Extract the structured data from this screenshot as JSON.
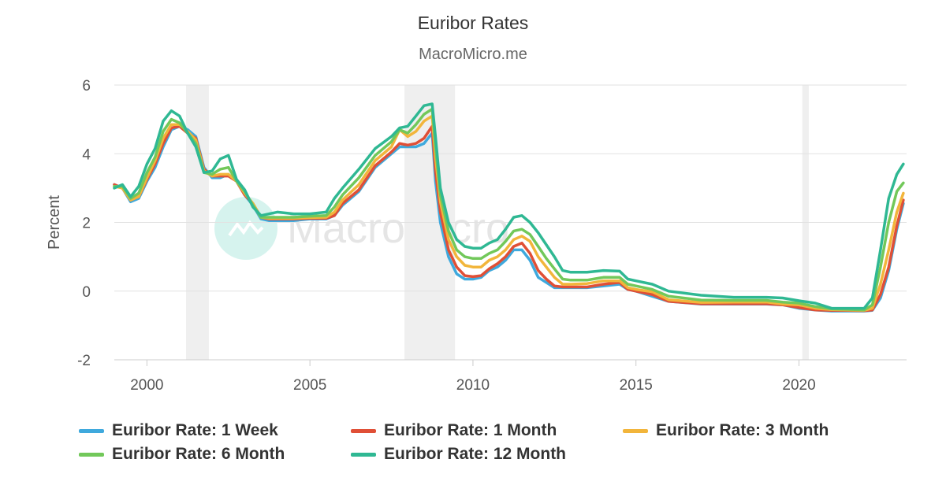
{
  "chart_data": {
    "type": "line",
    "title": "Euribor Rates",
    "subtitle": "MacroMicro.me",
    "watermark": "MacroMicro",
    "ylabel": "Percent",
    "xlabel": "",
    "ylim": [
      -2,
      6
    ],
    "yticks": [
      -2,
      0,
      2,
      4,
      6
    ],
    "xlim": [
      1999.0,
      2023.3
    ],
    "xticks": [
      2000,
      2005,
      2010,
      2015,
      2020
    ],
    "grid": true,
    "legend_position": "bottom",
    "recession_shading": [
      [
        2001.2,
        2001.9
      ],
      [
        2007.9,
        2009.45
      ],
      [
        2020.1,
        2020.3
      ]
    ],
    "series": [
      {
        "name": "Euribor Rate: 1 Week",
        "color": "#3fa9dd",
        "x": [
          1999.0,
          1999.25,
          1999.5,
          1999.75,
          2000.0,
          2000.25,
          2000.5,
          2000.75,
          2001.0,
          2001.25,
          2001.5,
          2001.75,
          2002.0,
          2002.25,
          2002.5,
          2002.75,
          2003.0,
          2003.25,
          2003.5,
          2003.75,
          2004.0,
          2004.5,
          2005.0,
          2005.5,
          2005.75,
          2006.0,
          2006.5,
          2007.0,
          2007.5,
          2007.75,
          2008.0,
          2008.25,
          2008.5,
          2008.75,
          2008.85,
          2009.0,
          2009.25,
          2009.5,
          2009.75,
          2010.0,
          2010.25,
          2010.5,
          2010.75,
          2011.0,
          2011.25,
          2011.5,
          2011.75,
          2012.0,
          2012.25,
          2012.5,
          2012.75,
          2013.0,
          2013.5,
          2014.0,
          2014.5,
          2014.75,
          2015.0,
          2015.5,
          2016.0,
          2017.0,
          2018.0,
          2019.0,
          2019.5,
          2020.0,
          2020.5,
          2021.0,
          2021.5,
          2022.0,
          2022.25,
          2022.5,
          2022.75,
          2023.0,
          2023.2
        ],
        "values": [
          3.1,
          3.0,
          2.6,
          2.7,
          3.2,
          3.6,
          4.2,
          4.7,
          4.8,
          4.7,
          4.5,
          3.6,
          3.3,
          3.3,
          3.4,
          3.2,
          2.8,
          2.5,
          2.1,
          2.05,
          2.05,
          2.05,
          2.1,
          2.1,
          2.2,
          2.5,
          2.9,
          3.6,
          4.0,
          4.2,
          4.2,
          4.2,
          4.3,
          4.6,
          3.2,
          2.0,
          1.0,
          0.5,
          0.35,
          0.35,
          0.4,
          0.6,
          0.7,
          0.9,
          1.2,
          1.2,
          0.9,
          0.4,
          0.25,
          0.1,
          0.1,
          0.1,
          0.1,
          0.15,
          0.2,
          0.05,
          0.0,
          -0.15,
          -0.3,
          -0.38,
          -0.38,
          -0.38,
          -0.4,
          -0.5,
          -0.55,
          -0.58,
          -0.58,
          -0.58,
          -0.56,
          -0.2,
          0.6,
          1.8,
          2.55
        ]
      },
      {
        "name": "Euribor Rate: 1 Month",
        "color": "#e04f36",
        "x": [
          1999.0,
          1999.25,
          1999.5,
          1999.75,
          2000.0,
          2000.25,
          2000.5,
          2000.75,
          2001.0,
          2001.25,
          2001.5,
          2001.75,
          2002.0,
          2002.25,
          2002.5,
          2002.75,
          2003.0,
          2003.25,
          2003.5,
          2003.75,
          2004.0,
          2004.5,
          2005.0,
          2005.5,
          2005.75,
          2006.0,
          2006.5,
          2007.0,
          2007.5,
          2007.75,
          2008.0,
          2008.25,
          2008.5,
          2008.75,
          2008.85,
          2009.0,
          2009.25,
          2009.5,
          2009.75,
          2010.0,
          2010.25,
          2010.5,
          2010.75,
          2011.0,
          2011.25,
          2011.5,
          2011.75,
          2012.0,
          2012.25,
          2012.5,
          2012.75,
          2013.0,
          2013.5,
          2014.0,
          2014.5,
          2014.75,
          2015.0,
          2015.5,
          2016.0,
          2017.0,
          2018.0,
          2019.0,
          2019.5,
          2020.0,
          2020.5,
          2021.0,
          2021.5,
          2022.0,
          2022.25,
          2022.5,
          2022.75,
          2023.0,
          2023.2
        ],
        "values": [
          3.1,
          3.0,
          2.65,
          2.75,
          3.25,
          3.7,
          4.3,
          4.75,
          4.8,
          4.6,
          4.45,
          3.55,
          3.35,
          3.35,
          3.35,
          3.2,
          2.8,
          2.55,
          2.15,
          2.1,
          2.1,
          2.1,
          2.12,
          2.12,
          2.2,
          2.55,
          2.95,
          3.65,
          4.05,
          4.3,
          4.25,
          4.3,
          4.45,
          4.8,
          3.5,
          2.3,
          1.2,
          0.7,
          0.45,
          0.42,
          0.45,
          0.65,
          0.8,
          1.0,
          1.3,
          1.4,
          1.1,
          0.6,
          0.35,
          0.15,
          0.12,
          0.12,
          0.12,
          0.2,
          0.25,
          0.05,
          0.0,
          -0.1,
          -0.3,
          -0.37,
          -0.37,
          -0.37,
          -0.4,
          -0.48,
          -0.55,
          -0.56,
          -0.56,
          -0.57,
          -0.55,
          -0.1,
          0.7,
          1.9,
          2.65
        ]
      },
      {
        "name": "Euribor Rate: 3 Month",
        "color": "#f2b53b",
        "x": [
          1999.0,
          1999.25,
          1999.5,
          1999.75,
          2000.0,
          2000.25,
          2000.5,
          2000.75,
          2001.0,
          2001.25,
          2001.5,
          2001.75,
          2002.0,
          2002.25,
          2002.5,
          2002.75,
          2003.0,
          2003.25,
          2003.5,
          2003.75,
          2004.0,
          2004.5,
          2005.0,
          2005.5,
          2005.75,
          2006.0,
          2006.5,
          2007.0,
          2007.5,
          2007.75,
          2008.0,
          2008.25,
          2008.5,
          2008.75,
          2008.85,
          2009.0,
          2009.25,
          2009.5,
          2009.75,
          2010.0,
          2010.25,
          2010.5,
          2010.75,
          2011.0,
          2011.25,
          2011.5,
          2011.75,
          2012.0,
          2012.25,
          2012.5,
          2012.75,
          2013.0,
          2013.5,
          2014.0,
          2014.5,
          2014.75,
          2015.0,
          2015.5,
          2016.0,
          2017.0,
          2018.0,
          2019.0,
          2019.5,
          2020.0,
          2020.5,
          2021.0,
          2021.5,
          2022.0,
          2022.25,
          2022.5,
          2022.75,
          2023.0,
          2023.2
        ],
        "values": [
          3.05,
          3.0,
          2.65,
          2.75,
          3.3,
          3.8,
          4.45,
          4.85,
          4.85,
          4.65,
          4.4,
          3.5,
          3.35,
          3.4,
          3.4,
          3.2,
          2.85,
          2.55,
          2.15,
          2.12,
          2.12,
          2.12,
          2.14,
          2.15,
          2.3,
          2.65,
          3.1,
          3.8,
          4.2,
          4.7,
          4.5,
          4.65,
          4.95,
          5.1,
          3.9,
          2.6,
          1.5,
          1.0,
          0.75,
          0.7,
          0.7,
          0.9,
          1.0,
          1.2,
          1.5,
          1.6,
          1.45,
          1.0,
          0.7,
          0.4,
          0.2,
          0.2,
          0.22,
          0.3,
          0.3,
          0.1,
          0.05,
          -0.02,
          -0.25,
          -0.33,
          -0.32,
          -0.32,
          -0.38,
          -0.4,
          -0.5,
          -0.54,
          -0.55,
          -0.56,
          -0.5,
          0.2,
          1.2,
          2.3,
          2.85
        ]
      },
      {
        "name": "Euribor Rate: 6 Month",
        "color": "#72c85a",
        "x": [
          1999.0,
          1999.25,
          1999.5,
          1999.75,
          2000.0,
          2000.25,
          2000.5,
          2000.75,
          2001.0,
          2001.25,
          2001.5,
          2001.75,
          2002.0,
          2002.25,
          2002.5,
          2002.75,
          2003.0,
          2003.25,
          2003.5,
          2003.75,
          2004.0,
          2004.5,
          2005.0,
          2005.5,
          2005.75,
          2006.0,
          2006.5,
          2007.0,
          2007.5,
          2007.75,
          2008.0,
          2008.25,
          2008.5,
          2008.75,
          2008.85,
          2009.0,
          2009.25,
          2009.5,
          2009.75,
          2010.0,
          2010.25,
          2010.5,
          2010.75,
          2011.0,
          2011.25,
          2011.5,
          2011.75,
          2012.0,
          2012.25,
          2012.5,
          2012.75,
          2013.0,
          2013.5,
          2014.0,
          2014.5,
          2014.75,
          2015.0,
          2015.5,
          2016.0,
          2017.0,
          2018.0,
          2019.0,
          2019.5,
          2020.0,
          2020.5,
          2021.0,
          2021.5,
          2022.0,
          2022.25,
          2022.5,
          2022.75,
          2023.0,
          2023.2
        ],
        "values": [
          3.05,
          3.05,
          2.7,
          2.85,
          3.45,
          3.9,
          4.65,
          5.0,
          4.9,
          4.6,
          4.3,
          3.45,
          3.4,
          3.55,
          3.6,
          3.2,
          2.9,
          2.5,
          2.15,
          2.15,
          2.15,
          2.15,
          2.18,
          2.2,
          2.45,
          2.8,
          3.3,
          3.95,
          4.35,
          4.7,
          4.6,
          4.85,
          5.15,
          5.3,
          4.2,
          2.8,
          1.75,
          1.2,
          1.0,
          0.95,
          0.95,
          1.1,
          1.2,
          1.45,
          1.75,
          1.8,
          1.65,
          1.3,
          0.95,
          0.65,
          0.35,
          0.32,
          0.32,
          0.4,
          0.4,
          0.2,
          0.15,
          0.05,
          -0.15,
          -0.26,
          -0.27,
          -0.27,
          -0.32,
          -0.35,
          -0.45,
          -0.52,
          -0.53,
          -0.55,
          -0.4,
          0.7,
          2.0,
          2.9,
          3.15
        ]
      },
      {
        "name": "Euribor Rate: 12 Month",
        "color": "#2fb893",
        "x": [
          1999.0,
          1999.25,
          1999.5,
          1999.75,
          2000.0,
          2000.25,
          2000.5,
          2000.75,
          2001.0,
          2001.25,
          2001.5,
          2001.75,
          2002.0,
          2002.25,
          2002.5,
          2002.75,
          2003.0,
          2003.25,
          2003.5,
          2003.75,
          2004.0,
          2004.5,
          2005.0,
          2005.5,
          2005.75,
          2006.0,
          2006.5,
          2007.0,
          2007.5,
          2007.75,
          2008.0,
          2008.25,
          2008.5,
          2008.75,
          2008.85,
          2009.0,
          2009.25,
          2009.5,
          2009.75,
          2010.0,
          2010.25,
          2010.5,
          2010.75,
          2011.0,
          2011.25,
          2011.5,
          2011.75,
          2012.0,
          2012.25,
          2012.5,
          2012.75,
          2013.0,
          2013.5,
          2014.0,
          2014.5,
          2014.75,
          2015.0,
          2015.5,
          2016.0,
          2017.0,
          2018.0,
          2019.0,
          2019.5,
          2020.0,
          2020.5,
          2021.0,
          2021.5,
          2022.0,
          2022.25,
          2022.5,
          2022.75,
          2023.0,
          2023.2
        ],
        "values": [
          3.0,
          3.1,
          2.75,
          3.05,
          3.7,
          4.15,
          4.95,
          5.25,
          5.1,
          4.6,
          4.2,
          3.45,
          3.5,
          3.85,
          3.95,
          3.25,
          2.95,
          2.45,
          2.2,
          2.25,
          2.3,
          2.25,
          2.25,
          2.3,
          2.7,
          3.0,
          3.55,
          4.15,
          4.5,
          4.75,
          4.8,
          5.1,
          5.4,
          5.45,
          4.5,
          3.0,
          2.0,
          1.5,
          1.3,
          1.25,
          1.25,
          1.4,
          1.5,
          1.8,
          2.15,
          2.2,
          2.0,
          1.7,
          1.35,
          1.0,
          0.6,
          0.55,
          0.55,
          0.6,
          0.58,
          0.35,
          0.3,
          0.2,
          0.0,
          -0.12,
          -0.18,
          -0.18,
          -0.2,
          -0.28,
          -0.35,
          -0.5,
          -0.5,
          -0.5,
          -0.2,
          1.2,
          2.7,
          3.4,
          3.7
        ]
      }
    ]
  }
}
